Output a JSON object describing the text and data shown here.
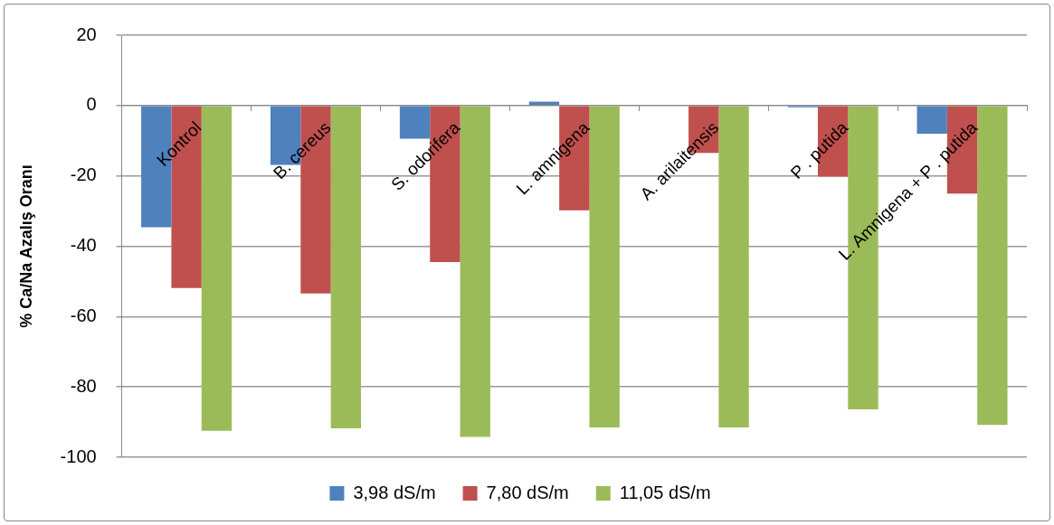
{
  "chart_data": {
    "type": "bar",
    "ylabel": "% Ca/Na Azalış Oranı",
    "categories": [
      "Kontrol",
      "B. cereus",
      "S. odorifera",
      "L. amnigena",
      "A. arilaitensis",
      "P . putida",
      "L. Amnigena + P . putida"
    ],
    "series": [
      {
        "name": "3,98 dS/m",
        "color": "#4f81bd",
        "values": [
          -34.6,
          -16.9,
          -9.4,
          1.1,
          0,
          -0.5,
          -8.0
        ]
      },
      {
        "name": "7,80 dS/m",
        "color": "#c0504d",
        "values": [
          -51.9,
          -53.4,
          -44.5,
          -29.8,
          -13.5,
          -20.2,
          -25.0
        ]
      },
      {
        "name": "11,05 dS/m",
        "color": "#9bbb59",
        "values": [
          -92.5,
          -91.8,
          -94.2,
          -91.5,
          -91.5,
          -86.4,
          -90.8
        ]
      }
    ],
    "ylim": [
      -100,
      20
    ],
    "yticks": [
      -100,
      -80,
      -60,
      -40,
      -20,
      0,
      20
    ],
    "grid": "y",
    "legend": "bottom"
  }
}
